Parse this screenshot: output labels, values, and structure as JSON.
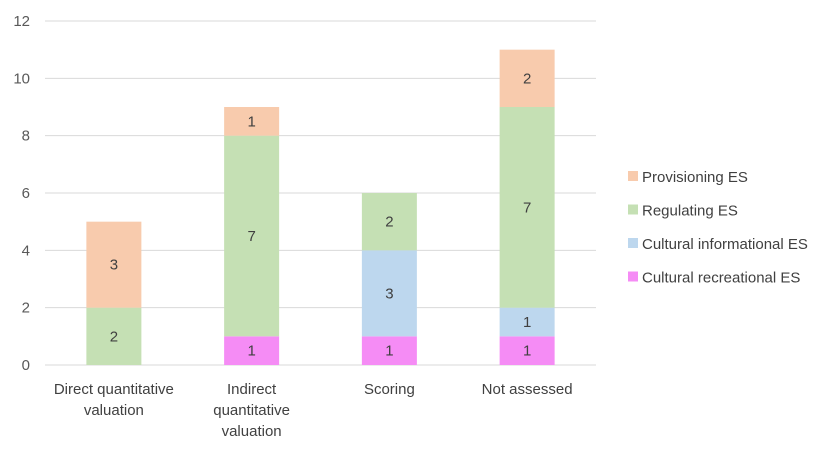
{
  "chart_data": {
    "type": "bar",
    "stacked": true,
    "categories": [
      [
        "Direct quantitative",
        "valuation"
      ],
      [
        "Indirect",
        "quantitative",
        "valuation"
      ],
      [
        "Scoring"
      ],
      [
        "Not assessed"
      ]
    ],
    "series": [
      {
        "name": "Cultural recreational ES",
        "color": "#f58cf5",
        "values": [
          0,
          1,
          1,
          1
        ]
      },
      {
        "name": "Cultural informational ES",
        "color": "#bdd7ee",
        "values": [
          0,
          0,
          3,
          1
        ]
      },
      {
        "name": "Regulating ES",
        "color": "#c5e0b4",
        "values": [
          2,
          7,
          2,
          7
        ]
      },
      {
        "name": "Provisioning ES",
        "color": "#f8cbad",
        "values": [
          3,
          1,
          0,
          2
        ]
      }
    ],
    "ylim": [
      0,
      12
    ],
    "yticks": [
      0,
      2,
      4,
      6,
      8,
      10,
      12
    ],
    "grid": true,
    "legend_position": "right",
    "legend_order": [
      "Provisioning ES",
      "Regulating ES",
      "Cultural informational ES",
      "Cultural recreational ES"
    ],
    "gridline_color": "#d9d9d9"
  }
}
